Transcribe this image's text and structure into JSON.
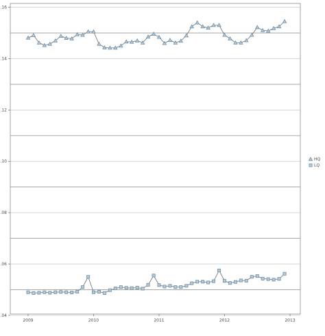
{
  "chart_data": {
    "type": "line",
    "title": "",
    "xlabel": "",
    "ylabel": "",
    "x_ticks": [
      "2009",
      "2010",
      "2011",
      "2012",
      "2013"
    ],
    "y_ticks": [
      "0.04",
      "0.06",
      "0.08",
      "0.10",
      "0.12",
      "0.14",
      "0.16"
    ],
    "xlim": [
      2009.0,
      2013.0
    ],
    "ylim": [
      0.0405,
      0.1615
    ],
    "grid": true,
    "legend_position": "right",
    "x": [
      2009.0,
      2009.083,
      2009.167,
      2009.25,
      2009.333,
      2009.417,
      2009.5,
      2009.583,
      2009.667,
      2009.75,
      2009.833,
      2009.917,
      2010.0,
      2010.083,
      2010.167,
      2010.25,
      2010.333,
      2010.417,
      2010.5,
      2010.583,
      2010.667,
      2010.75,
      2010.833,
      2010.917,
      2011.0,
      2011.083,
      2011.167,
      2011.25,
      2011.333,
      2011.417,
      2011.5,
      2011.583,
      2011.667,
      2011.75,
      2011.833,
      2011.917,
      2012.0,
      2012.083,
      2012.167,
      2012.25,
      2012.333,
      2012.417,
      2012.5,
      2012.583,
      2012.667,
      2012.75,
      2012.833,
      2012.917
    ],
    "series": [
      {
        "name": "HQ",
        "marker": "triangle",
        "color": "#6c8ea8",
        "values": [
          0.1481,
          0.1491,
          0.1462,
          0.1452,
          0.1457,
          0.147,
          0.1488,
          0.148,
          0.1478,
          0.1494,
          0.1492,
          0.1505,
          0.1505,
          0.1457,
          0.1443,
          0.1442,
          0.1442,
          0.145,
          0.1466,
          0.1465,
          0.147,
          0.1462,
          0.1485,
          0.1496,
          0.1484,
          0.146,
          0.1472,
          0.1462,
          0.1469,
          0.149,
          0.1525,
          0.154,
          0.1525,
          0.152,
          0.153,
          0.153,
          0.1492,
          0.1478,
          0.1462,
          0.1462,
          0.1471,
          0.1492,
          0.1522,
          0.151,
          0.1508,
          0.1518,
          0.1525,
          0.1545
        ]
      },
      {
        "name": "LQ",
        "marker": "square",
        "color": "#6c8ea8",
        "values": [
          0.049,
          0.0487,
          0.0488,
          0.049,
          0.0488,
          0.049,
          0.0491,
          0.049,
          0.0489,
          0.0492,
          0.051,
          0.055,
          0.049,
          0.0492,
          0.0487,
          0.0498,
          0.0505,
          0.051,
          0.0507,
          0.0506,
          0.0508,
          0.0504,
          0.0519,
          0.0555,
          0.0518,
          0.0512,
          0.0515,
          0.051,
          0.051,
          0.0515,
          0.0525,
          0.0531,
          0.0531,
          0.0528,
          0.0533,
          0.0575,
          0.0534,
          0.0526,
          0.053,
          0.0536,
          0.0535,
          0.055,
          0.0553,
          0.0543,
          0.0541,
          0.0539,
          0.0542,
          0.0562
        ]
      }
    ]
  }
}
